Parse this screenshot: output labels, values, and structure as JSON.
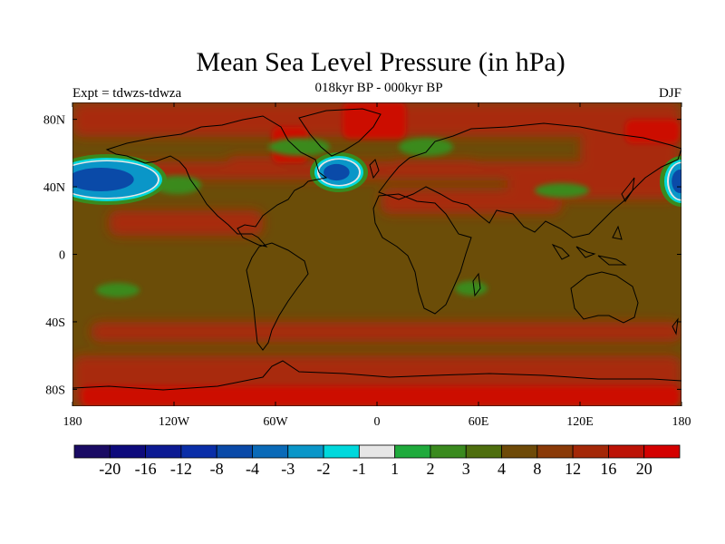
{
  "title": "Mean Sea Level Pressure (in hPa)",
  "subtitle": "018kyr BP - 000kyr BP",
  "left_label": "Expt = tdwzs-tdwza",
  "right_label": "DJF",
  "x_ticks": [
    {
      "label": "180",
      "lon": -180
    },
    {
      "label": "120W",
      "lon": -120
    },
    {
      "label": "60W",
      "lon": -60
    },
    {
      "label": "0",
      "lon": 0
    },
    {
      "label": "60E",
      "lon": 60
    },
    {
      "label": "120E",
      "lon": 120
    },
    {
      "label": "180",
      "lon": 180
    }
  ],
  "y_ticks": [
    {
      "label": "80N",
      "lat": 80
    },
    {
      "label": "40N",
      "lat": 40
    },
    {
      "label": "0",
      "lat": 0
    },
    {
      "label": "40S",
      "lat": -40
    },
    {
      "label": "80S",
      "lat": -80
    }
  ],
  "colorbar": {
    "colors": [
      "#1a0b64",
      "#0d0a7c",
      "#0c1a93",
      "#0a2ea8",
      "#0a4aa8",
      "#0a6ab8",
      "#0a96c8",
      "#00d8dc",
      "#e6e6e6",
      "#1faa3c",
      "#3a8a1e",
      "#4e6e0e",
      "#6e4a08",
      "#8a3a08",
      "#a42808",
      "#bc1206",
      "#d40000"
    ],
    "labels": [
      "-20",
      "-16",
      "-12",
      "-8",
      "-4",
      "-3",
      "-2",
      "-1",
      "1",
      "2",
      "3",
      "4",
      "8",
      "12",
      "16",
      "20"
    ]
  },
  "map_colors": {
    "background": "#6b4d08",
    "positive_high": "#a82a08",
    "positive_max": "#cc0a04",
    "green_low": "#3a8a1e",
    "deep_low": "#0a4aa8",
    "mid_low": "#0a96c8",
    "shallow_low": "#00d8dc",
    "near_zero": "#e6e6e6",
    "coastline": "#000000"
  }
}
